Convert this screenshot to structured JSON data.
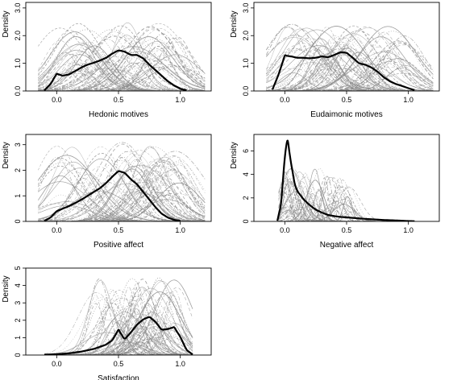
{
  "chart_data": [
    {
      "type": "line",
      "title": "",
      "xlabel": "Hedonic motives",
      "ylabel": "Density",
      "xlim": [
        -0.25,
        1.25
      ],
      "ylim": [
        0,
        3.2
      ],
      "xticks": [
        "0.0",
        "0.5",
        "1.0"
      ],
      "yticks": [
        "0.0",
        "1.0",
        "2.0",
        "3.0"
      ],
      "grid": false,
      "legend": "none",
      "background_series_count": 80,
      "background_color": "#8a8a8a",
      "mean_series": {
        "color": "#000000",
        "x": [
          -0.1,
          -0.05,
          0.0,
          0.05,
          0.1,
          0.15,
          0.2,
          0.25,
          0.3,
          0.35,
          0.4,
          0.45,
          0.5,
          0.55,
          0.6,
          0.65,
          0.7,
          0.75,
          0.8,
          0.85,
          0.9,
          0.95,
          1.0,
          1.05
        ],
        "values": [
          0.02,
          0.25,
          0.62,
          0.55,
          0.6,
          0.72,
          0.85,
          0.95,
          1.02,
          1.1,
          1.2,
          1.35,
          1.47,
          1.42,
          1.3,
          1.3,
          1.18,
          0.95,
          0.75,
          0.55,
          0.35,
          0.2,
          0.08,
          0.02
        ]
      }
    },
    {
      "type": "line",
      "title": "",
      "xlabel": "Eudaimonic motives",
      "ylabel": "Density",
      "xlim": [
        -0.25,
        1.25
      ],
      "ylim": [
        0,
        3.2
      ],
      "xticks": [
        "0.0",
        "0.5",
        "1.0"
      ],
      "yticks": [
        "0.0",
        "1.0",
        "2.0",
        "3.0"
      ],
      "grid": false,
      "legend": "none",
      "background_series_count": 80,
      "background_color": "#8a8a8a",
      "mean_series": {
        "color": "#000000",
        "x": [
          -0.1,
          -0.05,
          0.0,
          0.05,
          0.1,
          0.15,
          0.2,
          0.25,
          0.3,
          0.35,
          0.4,
          0.45,
          0.5,
          0.55,
          0.6,
          0.65,
          0.7,
          0.75,
          0.8,
          0.85,
          0.9,
          0.95,
          1.0,
          1.05
        ],
        "values": [
          0.05,
          0.6,
          1.28,
          1.25,
          1.2,
          1.2,
          1.18,
          1.2,
          1.25,
          1.22,
          1.3,
          1.4,
          1.38,
          1.2,
          1.0,
          0.95,
          0.85,
          0.7,
          0.5,
          0.35,
          0.25,
          0.18,
          0.1,
          0.03
        ]
      }
    },
    {
      "type": "line",
      "title": "",
      "xlabel": "Positive affect",
      "ylabel": "Density",
      "xlim": [
        -0.25,
        1.25
      ],
      "ylim": [
        0,
        3.4
      ],
      "xticks": [
        "0.0",
        "0.5",
        "1.0"
      ],
      "yticks": [
        "0",
        "1",
        "2",
        "3"
      ],
      "grid": false,
      "legend": "none",
      "background_series_count": 80,
      "background_color": "#8a8a8a",
      "mean_series": {
        "color": "#000000",
        "x": [
          -0.1,
          -0.05,
          0.0,
          0.05,
          0.1,
          0.15,
          0.2,
          0.25,
          0.3,
          0.35,
          0.4,
          0.45,
          0.5,
          0.55,
          0.6,
          0.65,
          0.7,
          0.75,
          0.8,
          0.85,
          0.9,
          0.95,
          1.0
        ],
        "values": [
          0.02,
          0.15,
          0.4,
          0.5,
          0.6,
          0.72,
          0.85,
          1.0,
          1.15,
          1.3,
          1.5,
          1.75,
          1.97,
          1.9,
          1.65,
          1.45,
          1.15,
          0.85,
          0.55,
          0.3,
          0.15,
          0.06,
          0.02
        ]
      }
    },
    {
      "type": "line",
      "title": "",
      "xlabel": "Negative affect",
      "ylabel": "Density",
      "xlim": [
        -0.25,
        1.25
      ],
      "ylim": [
        0,
        7.4
      ],
      "xticks": [
        "0.0",
        "0.5",
        "1.0"
      ],
      "yticks": [
        "0",
        "2",
        "4",
        "6"
      ],
      "grid": false,
      "legend": "none",
      "background_series_count": 80,
      "background_color": "#8a8a8a",
      "mean_series": {
        "color": "#000000",
        "x": [
          -0.06,
          -0.03,
          0.0,
          0.02,
          0.05,
          0.08,
          0.1,
          0.15,
          0.2,
          0.25,
          0.3,
          0.35,
          0.4,
          0.45,
          0.5,
          0.6,
          0.7,
          0.8,
          0.9,
          1.0,
          1.05
        ],
        "values": [
          0.05,
          1.5,
          5.5,
          7.1,
          5.0,
          3.2,
          2.6,
          1.9,
          1.4,
          1.0,
          0.75,
          0.55,
          0.45,
          0.38,
          0.35,
          0.25,
          0.18,
          0.12,
          0.08,
          0.03,
          0.02
        ]
      }
    },
    {
      "type": "line",
      "title": "",
      "xlabel": "Satisfaction",
      "ylabel": "Density",
      "xlim": [
        -0.25,
        1.25
      ],
      "ylim": [
        0,
        5.0
      ],
      "xticks": [
        "0.0",
        "0.5",
        "1.0"
      ],
      "yticks": [
        "0",
        "1",
        "2",
        "3",
        "4",
        "5"
      ],
      "grid": false,
      "legend": "none",
      "background_series_count": 80,
      "background_color": "#8a8a8a",
      "mean_series": {
        "color": "#000000",
        "x": [
          -0.1,
          0.0,
          0.1,
          0.2,
          0.3,
          0.4,
          0.45,
          0.5,
          0.55,
          0.6,
          0.65,
          0.7,
          0.75,
          0.8,
          0.85,
          0.9,
          0.95,
          1.0,
          1.05,
          1.1
        ],
        "values": [
          0.02,
          0.05,
          0.1,
          0.2,
          0.35,
          0.6,
          0.85,
          1.45,
          0.9,
          1.3,
          1.75,
          2.05,
          2.2,
          1.9,
          1.45,
          1.5,
          1.6,
          1.05,
          0.3,
          0.03
        ]
      }
    }
  ]
}
